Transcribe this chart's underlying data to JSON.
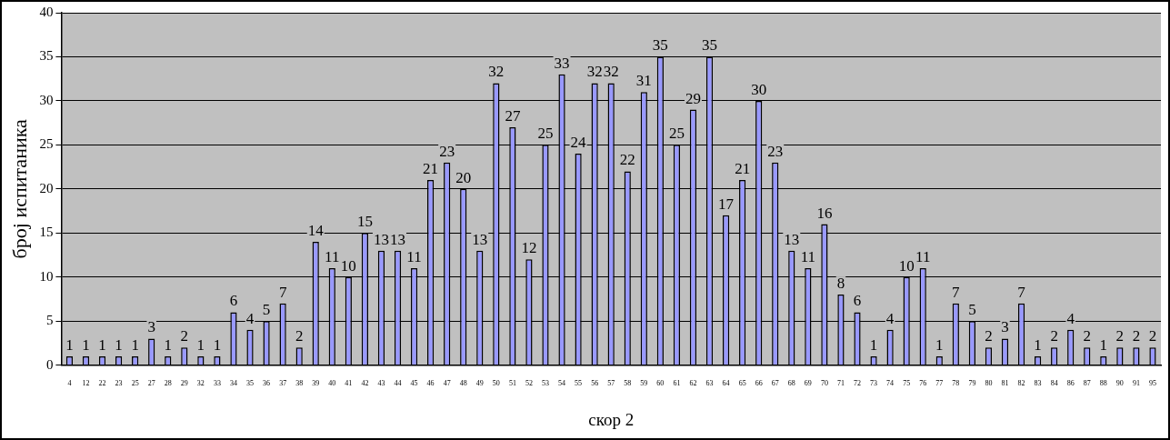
{
  "chart_data": {
    "type": "bar",
    "xlabel": "скор 2",
    "ylabel": "број испитаника",
    "categories": [
      "4",
      "12",
      "22",
      "23",
      "25",
      "27",
      "28",
      "29",
      "32",
      "33",
      "34",
      "35",
      "36",
      "37",
      "38",
      "39",
      "40",
      "41",
      "42",
      "43",
      "44",
      "45",
      "46",
      "47",
      "48",
      "49",
      "50",
      "51",
      "52",
      "53",
      "54",
      "55",
      "56",
      "57",
      "58",
      "59",
      "60",
      "61",
      "62",
      "63",
      "64",
      "65",
      "66",
      "67",
      "68",
      "69",
      "70",
      "71",
      "72",
      "73",
      "74",
      "75",
      "76",
      "77",
      "78",
      "79",
      "80",
      "81",
      "82",
      "83",
      "84",
      "86",
      "87",
      "88",
      "90",
      "91",
      "95"
    ],
    "values": [
      1,
      1,
      1,
      1,
      1,
      3,
      1,
      2,
      1,
      1,
      6,
      4,
      5,
      7,
      2,
      14,
      11,
      10,
      15,
      13,
      13,
      11,
      21,
      23,
      20,
      13,
      32,
      27,
      12,
      25,
      33,
      24,
      32,
      32,
      22,
      31,
      35,
      25,
      29,
      35,
      17,
      21,
      30,
      23,
      13,
      11,
      16,
      8,
      6,
      1,
      4,
      10,
      11,
      1,
      7,
      5,
      2,
      3,
      7,
      1,
      2,
      4,
      2,
      1,
      2,
      2,
      2
    ],
    "color": "#9999ff",
    "ylim": [
      0,
      40
    ],
    "yticks": [
      0,
      5,
      10,
      15,
      20,
      25,
      30,
      35,
      40
    ],
    "grid": "y",
    "data_labels": true
  }
}
